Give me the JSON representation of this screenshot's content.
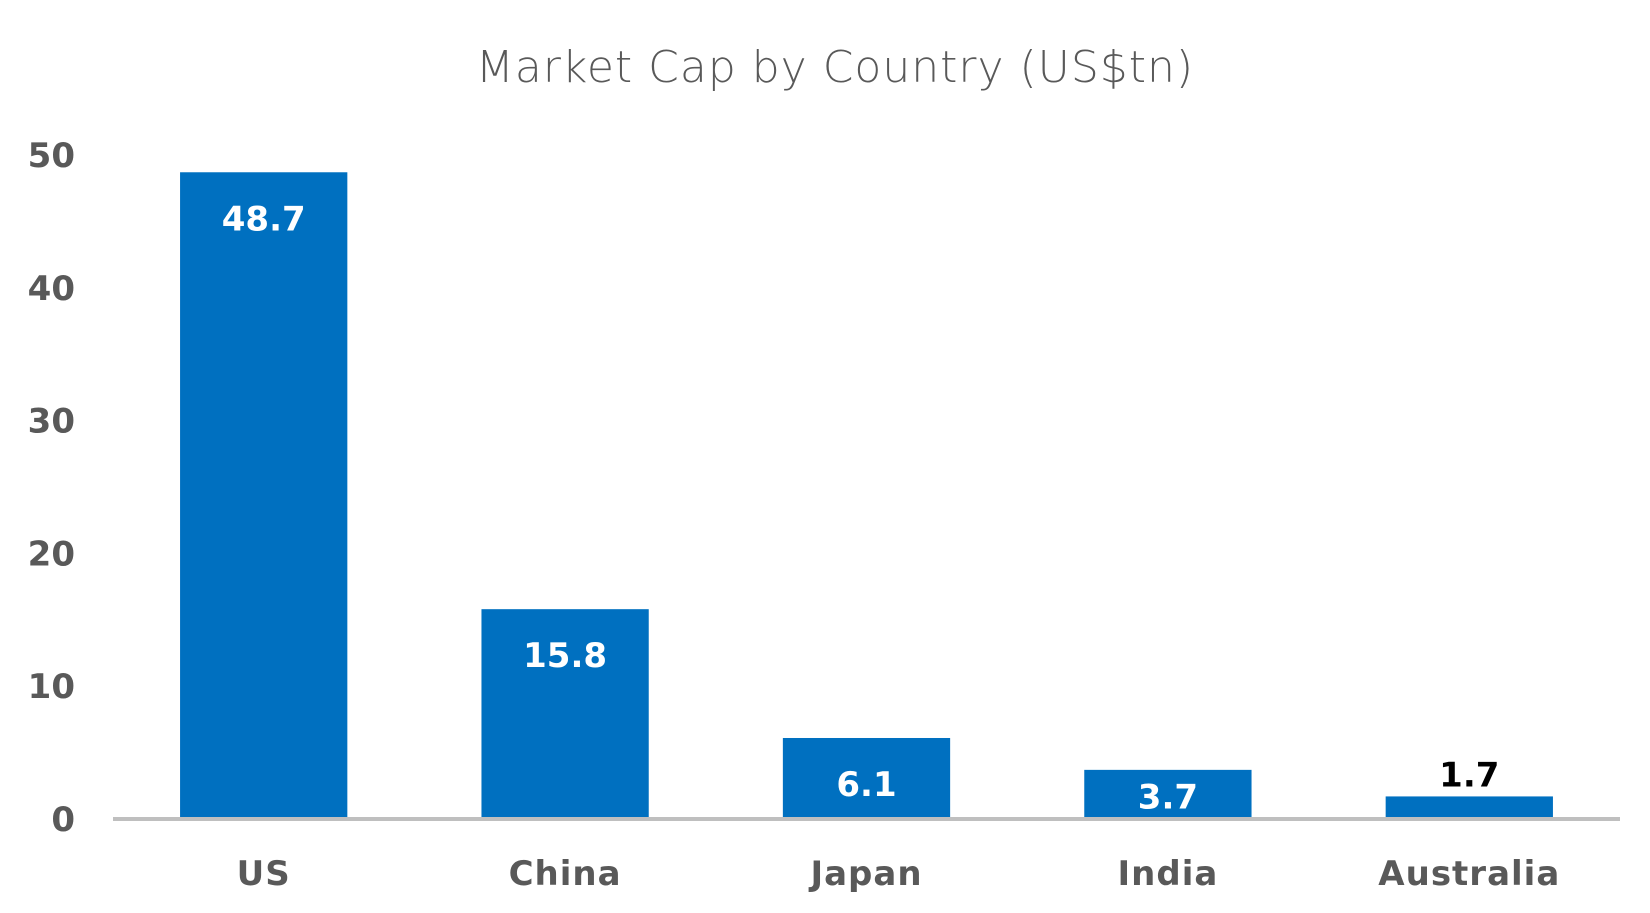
{
  "chart_data": {
    "type": "bar",
    "title": "Market Cap by Country (US$tn)",
    "xlabel": "",
    "ylabel": "",
    "categories": [
      "US",
      "China",
      "Japan",
      "India",
      "Australia"
    ],
    "values": [
      48.7,
      15.8,
      6.1,
      3.7,
      1.7
    ],
    "data_labels": [
      "48.7",
      "15.8",
      "6.1",
      "3.7",
      "1.7"
    ],
    "data_label_position": [
      "inside-end",
      "inside-end",
      "inside-end",
      "inside-end",
      "outside-end"
    ],
    "ylim": [
      0,
      50
    ],
    "yticks": [
      0,
      10,
      20,
      30,
      40,
      50
    ],
    "ytick_labels": [
      "0",
      "10",
      "20",
      "30",
      "40",
      "50"
    ],
    "grid": false,
    "legend": "none",
    "colors": {
      "bar": "#0070C0",
      "axis": "#BFBFBF",
      "text": "#595959",
      "label_inside": "#FFFFFF",
      "label_outside": "#000000"
    }
  }
}
